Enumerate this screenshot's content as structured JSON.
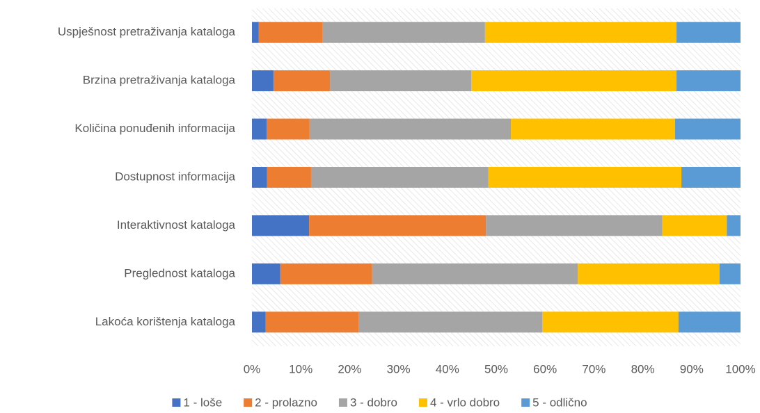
{
  "chart_data": {
    "type": "stacked_barh",
    "categories": [
      "Uspješnost pretraživanja kataloga",
      "Brzina pretraživanja kataloga",
      "Količina ponuđenih informacija",
      "Dostupnost informacija",
      "Interaktivnost kataloga",
      "Preglednost kataloga",
      "Lakoća korištenja kataloga"
    ],
    "series": [
      {
        "name": "1 - loše",
        "color": "#4472c4",
        "values": [
          1.4,
          4.4,
          3.0,
          3.1,
          11.7,
          5.8,
          2.8
        ]
      },
      {
        "name": "2 - prolazno",
        "color": "#ed7d31",
        "values": [
          13.1,
          11.6,
          8.8,
          9.0,
          36.2,
          18.8,
          19.0
        ]
      },
      {
        "name": "3 - dobro",
        "color": "#a5a5a5",
        "values": [
          33.2,
          28.9,
          41.2,
          36.3,
          36.1,
          42.1,
          37.6
        ]
      },
      {
        "name": "4 - vrlo dobro",
        "color": "#ffc000",
        "values": [
          39.2,
          42.0,
          33.6,
          39.5,
          13.2,
          29.0,
          27.9
        ]
      },
      {
        "name": "5 - odlično",
        "color": "#5b9bd5",
        "values": [
          13.1,
          13.1,
          13.4,
          12.1,
          2.8,
          4.3,
          12.7
        ]
      }
    ],
    "xlim": [
      0,
      100
    ],
    "xticks": [
      {
        "value": 0,
        "label": "0%"
      },
      {
        "value": 10,
        "label": "10%"
      },
      {
        "value": 20,
        "label": "20%"
      },
      {
        "value": 30,
        "label": "30%"
      },
      {
        "value": 40,
        "label": "40%"
      },
      {
        "value": 50,
        "label": "50%"
      },
      {
        "value": 60,
        "label": "60%"
      },
      {
        "value": 70,
        "label": "70%"
      },
      {
        "value": 80,
        "label": "80%"
      },
      {
        "value": 90,
        "label": "90%"
      },
      {
        "value": 100,
        "label": "100%"
      }
    ],
    "grid": false,
    "legend": "bottom"
  }
}
